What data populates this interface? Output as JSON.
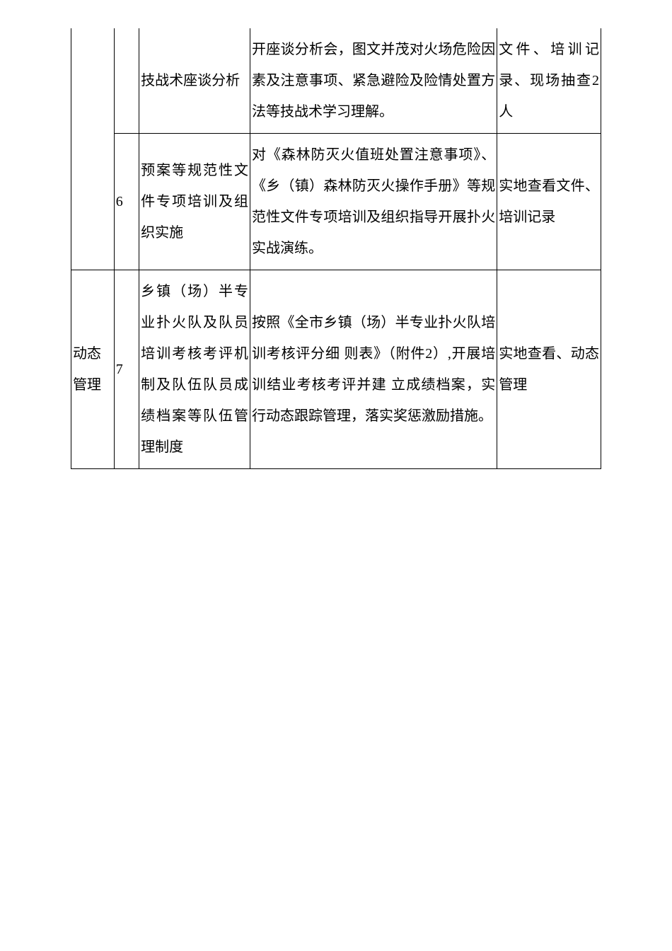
{
  "table": {
    "colors": {
      "border": "#000000",
      "text": "#000000",
      "background": "#ffffff"
    },
    "fontsize": 20,
    "line_height": 2.2,
    "columns": {
      "category_width": 60,
      "num_width": 35,
      "item_width": 155,
      "content_width": 345,
      "method_width": 145
    },
    "rows": [
      {
        "category": "",
        "num": "",
        "item": "技战术座谈分析",
        "content": "开座谈分析会，图文并茂对火场危险因素及注意事项、紧急避险及险情处置方法等技战术学习理解。",
        "method": "文件、培训记录、现场抽查2人"
      },
      {
        "num": "6",
        "item": "预案等规范性文件专项培训及组织实施",
        "content": "对《森林防灭火值班处置注意事项》、《乡（镇）森林防灭火操作手册》等规范性文件专项培训及组织指导开展扑火实战演练。",
        "method": "实地查看文件、培训记录"
      },
      {
        "category": "动态管理",
        "num": "7",
        "item": "乡镇（场）半专业扑火队及队员 培训考核考评机制及队伍队员成 绩档案等队伍管理制度",
        "content": "按照《全市乡镇（场）半专业扑火队培训考核评分细 则表》（附件2）,开展培训结业考核考评并建 立成绩档案，实行动态跟踪管理，落实奖惩激励措施。",
        "method": "实地查看、动态管理"
      }
    ]
  }
}
